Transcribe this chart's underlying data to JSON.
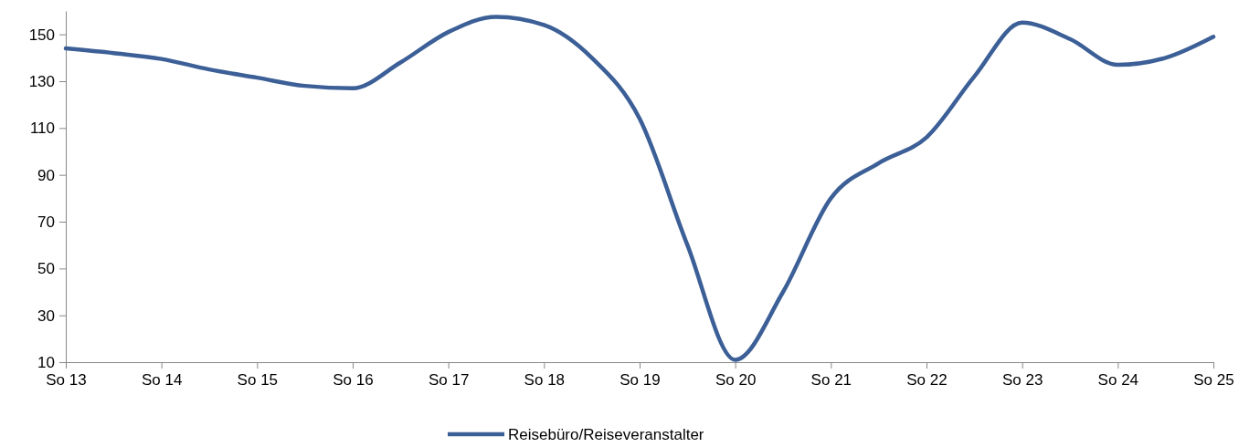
{
  "chart_data": {
    "type": "line",
    "categories": [
      "So 13",
      null,
      "So 14",
      null,
      "So 15",
      null,
      "So 16",
      null,
      "So 17",
      null,
      "So 18",
      null,
      "So 19",
      null,
      "So 20",
      null,
      "So 21",
      null,
      "So 22",
      null,
      "So 23",
      null,
      "So 24",
      null,
      "So 25"
    ],
    "series": [
      {
        "name": "Reisebüro/Reiseveranstalter",
        "color": "#3b5f96",
        "values": [
          144,
          142,
          139.5,
          135,
          131.5,
          128,
          127,
          138,
          151,
          157.5,
          154,
          140,
          114,
          60,
          11,
          40,
          80,
          95,
          106,
          132,
          155,
          148,
          137,
          140,
          149
        ]
      }
    ],
    "ylim": [
      10,
      160
    ],
    "yticks": [
      10,
      30,
      50,
      70,
      90,
      110,
      130,
      150
    ],
    "grid": false,
    "legend": "bottom",
    "marker": "none",
    "line_style": "solid"
  }
}
